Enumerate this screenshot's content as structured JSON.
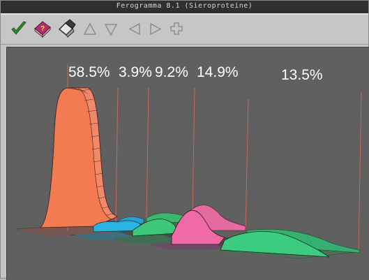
{
  "window": {
    "title": "Ferogramma 8.1  (Sieroproteine)"
  },
  "toolbar": {
    "buttons": [
      {
        "name": "confirm-button",
        "icon": "checkmark-icon",
        "color": "#2e8b2e"
      },
      {
        "name": "help-button",
        "icon": "help-book-icon",
        "color": "#b0306a"
      },
      {
        "name": "eraser-button",
        "icon": "eraser-icon",
        "color": "#303030"
      },
      {
        "name": "move-up-button",
        "icon": "triangle-up-icon",
        "color": "#8e8e8e"
      },
      {
        "name": "move-down-button",
        "icon": "triangle-down-icon",
        "color": "#8e8e8e"
      },
      {
        "name": "move-left-button",
        "icon": "triangle-left-icon",
        "color": "#8e8e8e"
      },
      {
        "name": "move-right-button",
        "icon": "triangle-right-icon",
        "color": "#8e8e8e"
      },
      {
        "name": "add-button",
        "icon": "plus-icon",
        "color": "#8e8e8e"
      }
    ]
  },
  "chart_data": {
    "type": "area",
    "title": "",
    "view": "3d-perspective",
    "series": [
      {
        "name": "",
        "value_pct": 58.5,
        "label": "58.5%",
        "color": "#f47a52"
      },
      {
        "name": "",
        "value_pct": 3.9,
        "label": "3.9%",
        "color": "#2ab4e6"
      },
      {
        "name": "",
        "value_pct": 9.2,
        "label": "9.2%",
        "color": "#3cc878"
      },
      {
        "name": "",
        "value_pct": 14.9,
        "label": "14.9%",
        "color": "#f06aa8"
      },
      {
        "name": "",
        "value_pct": 13.5,
        "label": "13.5%",
        "color": "#3ccc80"
      }
    ],
    "colors": {
      "background": "#606060",
      "separator": "#c86a5a",
      "floor": "#7a5650"
    }
  }
}
